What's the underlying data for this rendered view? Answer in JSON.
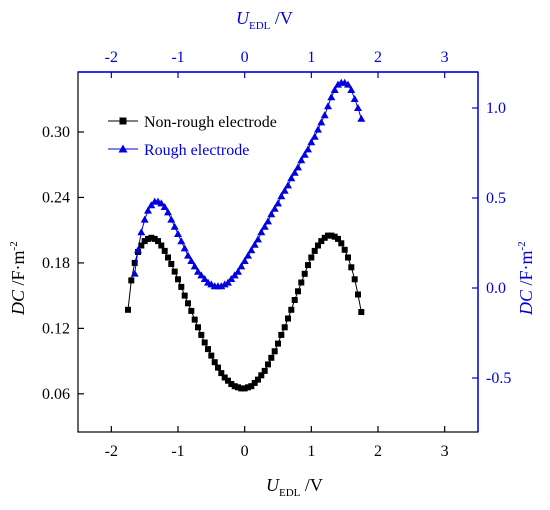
{
  "colors": {
    "black": "#000000",
    "blue": "#0000e0"
  },
  "chart_data": {
    "type": "scatter",
    "bottom_axis": {
      "label_main": "U",
      "label_sub": "EDL",
      "label_unit": " /V",
      "range": [
        -2.5,
        3.5
      ],
      "ticks": [
        -2,
        -1,
        0,
        1,
        2,
        3
      ]
    },
    "top_axis": {
      "label_main": "U",
      "label_sub": "EDL",
      "label_unit": " /V",
      "range": [
        -2.5,
        3.5
      ],
      "ticks": [
        -2,
        -1,
        0,
        1,
        2,
        3
      ]
    },
    "left_axis": {
      "label_main": "DC",
      "label_unit": " /F·m",
      "label_sup": "-2",
      "range": [
        0.025,
        0.355
      ],
      "ticks": [
        0.06,
        0.12,
        0.18,
        0.24,
        0.3
      ],
      "tick_labels": [
        "0.06",
        "0.12",
        "0.18",
        "0.24",
        "0.30"
      ]
    },
    "right_axis": {
      "label_main": "DC",
      "label_unit": " /F·m",
      "label_sup": "-2",
      "range": [
        -0.8,
        1.2
      ],
      "ticks": [
        -0.5,
        0.0,
        0.5,
        1.0
      ],
      "tick_labels": [
        "-0.5",
        "0.0",
        "0.5",
        "1.0"
      ]
    },
    "legend": {
      "position": "top-left"
    },
    "series": [
      {
        "name": "Non-rough electrode",
        "marker": "square",
        "color": "#000000",
        "axis": "left",
        "x_start": -1.75,
        "x_step": 0.05,
        "y": [
          0.137,
          0.164,
          0.18,
          0.19,
          0.196,
          0.2,
          0.202,
          0.203,
          0.202,
          0.2,
          0.196,
          0.191,
          0.185,
          0.179,
          0.172,
          0.165,
          0.158,
          0.15,
          0.143,
          0.136,
          0.128,
          0.121,
          0.114,
          0.107,
          0.101,
          0.095,
          0.089,
          0.084,
          0.079,
          0.075,
          0.072,
          0.069,
          0.067,
          0.066,
          0.065,
          0.065,
          0.066,
          0.067,
          0.07,
          0.073,
          0.077,
          0.081,
          0.087,
          0.093,
          0.099,
          0.106,
          0.114,
          0.121,
          0.129,
          0.137,
          0.146,
          0.154,
          0.162,
          0.17,
          0.178,
          0.185,
          0.191,
          0.196,
          0.2,
          0.203,
          0.205,
          0.205,
          0.204,
          0.202,
          0.198,
          0.192,
          0.185,
          0.176,
          0.165,
          0.151,
          0.135
        ]
      },
      {
        "name": "Rough electrode",
        "marker": "triangle",
        "color": "#0000e0",
        "axis": "right",
        "x_start": -1.65,
        "x_step": 0.05,
        "y": [
          0.08,
          0.21,
          0.31,
          0.38,
          0.43,
          0.46,
          0.48,
          0.48,
          0.47,
          0.45,
          0.42,
          0.38,
          0.34,
          0.3,
          0.26,
          0.22,
          0.18,
          0.15,
          0.12,
          0.09,
          0.07,
          0.05,
          0.03,
          0.02,
          0.01,
          0.01,
          0.01,
          0.02,
          0.03,
          0.05,
          0.07,
          0.09,
          0.12,
          0.15,
          0.18,
          0.21,
          0.24,
          0.27,
          0.31,
          0.34,
          0.37,
          0.41,
          0.44,
          0.47,
          0.51,
          0.54,
          0.57,
          0.61,
          0.64,
          0.67,
          0.71,
          0.74,
          0.77,
          0.81,
          0.84,
          0.88,
          0.92,
          0.96,
          1.01,
          1.06,
          1.1,
          1.13,
          1.14,
          1.14,
          1.13,
          1.1,
          1.05,
          1.0,
          0.94
        ]
      }
    ]
  }
}
